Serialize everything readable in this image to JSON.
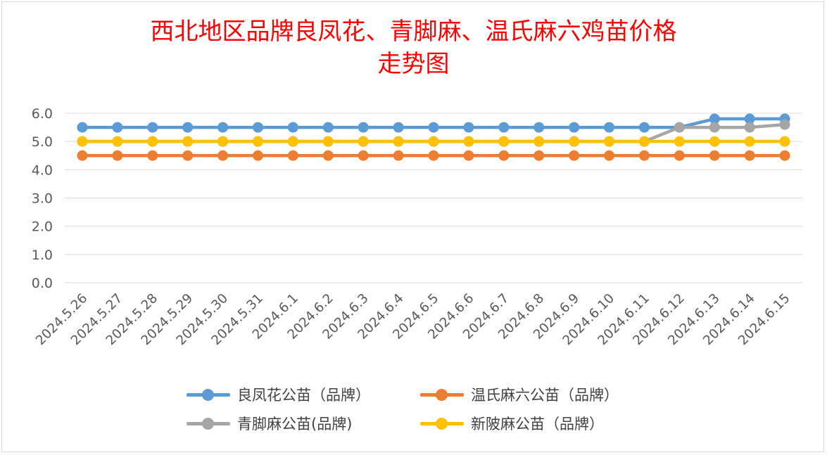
{
  "chart_data": {
    "type": "line",
    "title_lines": [
      "西北地区品牌良凤花、青脚麻、温氏麻六鸡苗价格",
      "走势图"
    ],
    "categories": [
      "2024.5.26",
      "2024.5.27",
      "2024.5.28",
      "2024.5.29",
      "2024.5.30",
      "2024.5.31",
      "2024.6.1",
      "2024.6.2",
      "2024.6.3",
      "2024.6.4",
      "2024.6.5",
      "2024.6.6",
      "2024.6.7",
      "2024.6.8",
      "2024.6.9",
      "2024.6.10",
      "2024.6.11",
      "2024.6.12",
      "2024.6.13",
      "2024.6.14",
      "2024.6.15"
    ],
    "ylim": [
      0,
      6
    ],
    "yticks": [
      "0.0",
      "1.0",
      "2.0",
      "3.0",
      "4.0",
      "5.0",
      "6.0"
    ],
    "grid": true,
    "legend_position": "bottom",
    "series": [
      {
        "name": "良凤花公苗（品牌）",
        "color": "#5b9bd5",
        "values": [
          5.5,
          5.5,
          5.5,
          5.5,
          5.5,
          5.5,
          5.5,
          5.5,
          5.5,
          5.5,
          5.5,
          5.5,
          5.5,
          5.5,
          5.5,
          5.5,
          5.5,
          5.5,
          5.8,
          5.8,
          5.8
        ]
      },
      {
        "name": "温氏麻六公苗（品牌）",
        "color": "#ed7d31",
        "values": [
          4.5,
          4.5,
          4.5,
          4.5,
          4.5,
          4.5,
          4.5,
          4.5,
          4.5,
          4.5,
          4.5,
          4.5,
          4.5,
          4.5,
          4.5,
          4.5,
          4.5,
          4.5,
          4.5,
          4.5,
          4.5
        ]
      },
      {
        "name": "青脚麻公苗(品牌)",
        "color": "#a5a5a5",
        "values": [
          5.0,
          5.0,
          5.0,
          5.0,
          5.0,
          5.0,
          5.0,
          5.0,
          5.0,
          5.0,
          5.0,
          5.0,
          5.0,
          5.0,
          5.0,
          5.0,
          5.0,
          5.5,
          5.5,
          5.5,
          5.6
        ]
      },
      {
        "name": "新陂麻公苗（品牌）",
        "color": "#ffc000",
        "values": [
          5.0,
          5.0,
          5.0,
          5.0,
          5.0,
          5.0,
          5.0,
          5.0,
          5.0,
          5.0,
          5.0,
          5.0,
          5.0,
          5.0,
          5.0,
          5.0,
          5.0,
          5.0,
          5.0,
          5.0,
          5.0
        ]
      }
    ]
  }
}
